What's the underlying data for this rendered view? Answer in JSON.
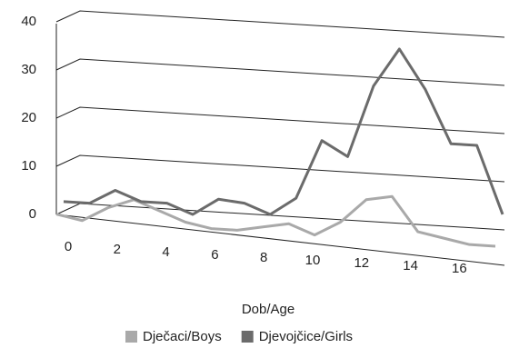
{
  "chart_data": {
    "type": "line",
    "x_label": "Dob/Age",
    "categories": [
      "0",
      null,
      "2",
      null,
      "4",
      null,
      "6",
      null,
      "8",
      null,
      "10",
      null,
      "12",
      null,
      "14",
      null,
      "16",
      null
    ],
    "series": [
      {
        "name": "Dječaci/Boys",
        "color": "#a9a9a9",
        "values": [
          1,
          0,
          3,
          5,
          3,
          1,
          0,
          0,
          1,
          2,
          0,
          3,
          8,
          9,
          2,
          1,
          0,
          0
        ]
      },
      {
        "name": "Djevojčice/Girls",
        "color": "#6b6b6b",
        "values": [
          2,
          2,
          5,
          3,
          3,
          1,
          4.5,
          4,
          2,
          5.7,
          18,
          15,
          30,
          38,
          30,
          19,
          19,
          5
        ]
      }
    ],
    "ylim": [
      0,
      40
    ],
    "yticks": [
      0,
      10,
      20,
      30,
      40
    ],
    "grid": true,
    "legend": "bottom"
  }
}
